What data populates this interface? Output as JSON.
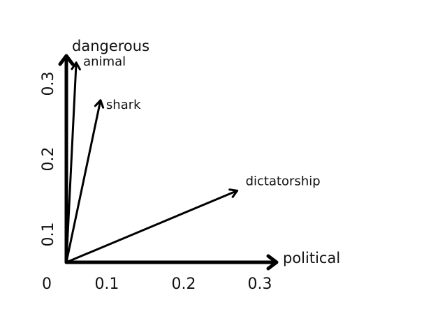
{
  "chart_data": {
    "type": "vector",
    "xlabel": "political",
    "ylabel": "dangerous",
    "origin_label": "0",
    "xticks": [
      "0.1",
      "0.2",
      "0.3"
    ],
    "yticks": [
      "0.1",
      "0.2",
      "0.3"
    ],
    "xlim": [
      0,
      0.3
    ],
    "ylim": [
      0,
      0.3
    ],
    "vectors": [
      {
        "label": "animal",
        "x": 0.013,
        "y": 0.265
      },
      {
        "label": "shark",
        "x": 0.045,
        "y": 0.215
      },
      {
        "label": "dictatorship",
        "x": 0.225,
        "y": 0.095
      }
    ],
    "color": "#000000"
  }
}
